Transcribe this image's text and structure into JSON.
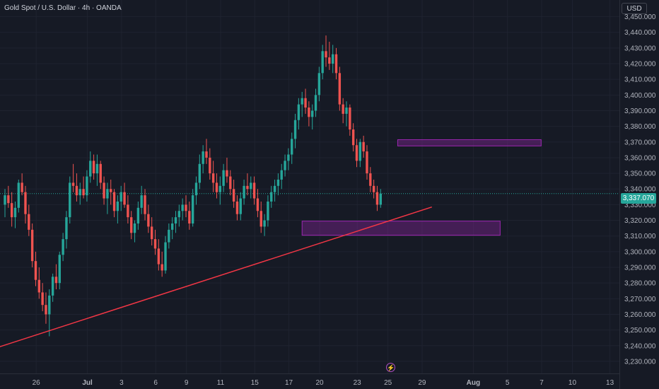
{
  "header": {
    "symbol_title": "Gold Spot / U.S. Dollar · 4h · OANDA"
  },
  "price_axis": {
    "currency": "USD",
    "current_price_label": "3,337.070"
  },
  "bottom_bar": {
    "bolt_icon": "lightning-icon"
  },
  "colors": {
    "background": "#161a25",
    "bull": "#26a69a",
    "bear": "#ef5350",
    "trendline": "#f23645",
    "zone_fill": "#9c27b0",
    "zone_border": "#9c27b0",
    "grid": "#1f2330"
  },
  "chart_data": {
    "type": "candlestick",
    "title": "Gold Spot / U.S. Dollar · 4h · OANDA",
    "y_axis": {
      "ticks": [
        3230,
        3240,
        3250,
        3260,
        3270,
        3280,
        3290,
        3300,
        3310,
        3320,
        3330,
        3340,
        3350,
        3360,
        3370,
        3380,
        3390,
        3400,
        3410,
        3420,
        3430,
        3440,
        3450
      ],
      "tick_labels": [
        "3,230.000",
        "3,240.000",
        "3,250.000",
        "3,260.000",
        "3,270.000",
        "3,280.000",
        "3,290.000",
        "3,300.000",
        "3,310.000",
        "3,320.000",
        "3,330.000",
        "3,340.000",
        "3,350.000",
        "3,360.000",
        "3,370.000",
        "3,380.000",
        "3,390.000",
        "3,400.000",
        "3,410.000",
        "3,420.000",
        "3,430.000",
        "3,440.000",
        "3,450.000"
      ],
      "range": [
        3225,
        3458
      ]
    },
    "x_axis": {
      "tick_labels": [
        "26",
        "Jul",
        "3",
        "6",
        "9",
        "11",
        "15",
        "17",
        "20",
        "23",
        "25",
        "29",
        "Aug",
        "5",
        "7",
        "10",
        "13"
      ],
      "tick_bar_index": [
        5,
        20,
        30,
        40,
        49,
        59,
        69,
        79,
        88,
        99,
        108,
        118,
        133,
        143,
        153,
        162,
        173
      ]
    },
    "current_price": 3337.07,
    "candles": [
      [
        3330,
        3340,
        3322,
        3336
      ],
      [
        3336,
        3342,
        3328,
        3331
      ],
      [
        3331,
        3338,
        3316,
        3322
      ],
      [
        3322,
        3332,
        3315,
        3328
      ],
      [
        3328,
        3346,
        3325,
        3344
      ],
      [
        3344,
        3350,
        3336,
        3338
      ],
      [
        3338,
        3342,
        3318,
        3324
      ],
      [
        3324,
        3330,
        3310,
        3314
      ],
      [
        3314,
        3318,
        3290,
        3294
      ],
      [
        3294,
        3300,
        3278,
        3282
      ],
      [
        3282,
        3290,
        3270,
        3274
      ],
      [
        3274,
        3280,
        3262,
        3266
      ],
      [
        3266,
        3274,
        3254,
        3260
      ],
      [
        3260,
        3276,
        3246,
        3272
      ],
      [
        3272,
        3286,
        3268,
        3284
      ],
      [
        3284,
        3292,
        3276,
        3280
      ],
      [
        3280,
        3300,
        3276,
        3298
      ],
      [
        3298,
        3312,
        3294,
        3308
      ],
      [
        3308,
        3326,
        3302,
        3322
      ],
      [
        3322,
        3348,
        3318,
        3344
      ],
      [
        3344,
        3356,
        3338,
        3342
      ],
      [
        3342,
        3350,
        3332,
        3336
      ],
      [
        3336,
        3344,
        3330,
        3340
      ],
      [
        3340,
        3348,
        3334,
        3336
      ],
      [
        3336,
        3352,
        3332,
        3348
      ],
      [
        3348,
        3364,
        3344,
        3358
      ],
      [
        3358,
        3362,
        3346,
        3350
      ],
      [
        3350,
        3362,
        3342,
        3356
      ],
      [
        3356,
        3358,
        3340,
        3344
      ],
      [
        3344,
        3348,
        3330,
        3334
      ],
      [
        3334,
        3344,
        3324,
        3340
      ],
      [
        3340,
        3346,
        3330,
        3338
      ],
      [
        3338,
        3340,
        3322,
        3326
      ],
      [
        3326,
        3336,
        3318,
        3332
      ],
      [
        3332,
        3342,
        3326,
        3338
      ],
      [
        3338,
        3344,
        3328,
        3330
      ],
      [
        3330,
        3336,
        3318,
        3322
      ],
      [
        3322,
        3326,
        3308,
        3312
      ],
      [
        3312,
        3320,
        3306,
        3318
      ],
      [
        3318,
        3332,
        3314,
        3328
      ],
      [
        3328,
        3342,
        3324,
        3336
      ],
      [
        3336,
        3340,
        3320,
        3324
      ],
      [
        3324,
        3330,
        3312,
        3316
      ],
      [
        3316,
        3322,
        3304,
        3308
      ],
      [
        3308,
        3314,
        3298,
        3302
      ],
      [
        3302,
        3308,
        3288,
        3292
      ],
      [
        3292,
        3300,
        3284,
        3288
      ],
      [
        3288,
        3310,
        3286,
        3306
      ],
      [
        3306,
        3318,
        3302,
        3314
      ],
      [
        3314,
        3322,
        3308,
        3318
      ],
      [
        3318,
        3326,
        3312,
        3322
      ],
      [
        3322,
        3330,
        3316,
        3326
      ],
      [
        3326,
        3334,
        3320,
        3330
      ],
      [
        3330,
        3336,
        3322,
        3326
      ],
      [
        3326,
        3332,
        3314,
        3318
      ],
      [
        3318,
        3340,
        3316,
        3336
      ],
      [
        3336,
        3348,
        3330,
        3344
      ],
      [
        3344,
        3362,
        3340,
        3356
      ],
      [
        3356,
        3368,
        3350,
        3364
      ],
      [
        3364,
        3372,
        3356,
        3360
      ],
      [
        3360,
        3366,
        3346,
        3350
      ],
      [
        3350,
        3358,
        3338,
        3344
      ],
      [
        3344,
        3350,
        3334,
        3338
      ],
      [
        3338,
        3348,
        3330,
        3342
      ],
      [
        3342,
        3356,
        3338,
        3352
      ],
      [
        3352,
        3360,
        3344,
        3348
      ],
      [
        3348,
        3352,
        3336,
        3340
      ],
      [
        3340,
        3346,
        3328,
        3332
      ],
      [
        3332,
        3336,
        3320,
        3324
      ],
      [
        3324,
        3338,
        3320,
        3334
      ],
      [
        3334,
        3346,
        3330,
        3342
      ],
      [
        3342,
        3350,
        3336,
        3340
      ],
      [
        3340,
        3348,
        3334,
        3344
      ],
      [
        3344,
        3348,
        3330,
        3334
      ],
      [
        3334,
        3340,
        3322,
        3326
      ],
      [
        3326,
        3332,
        3312,
        3316
      ],
      [
        3316,
        3324,
        3310,
        3320
      ],
      [
        3320,
        3336,
        3316,
        3332
      ],
      [
        3332,
        3342,
        3328,
        3338
      ],
      [
        3338,
        3346,
        3332,
        3342
      ],
      [
        3342,
        3350,
        3336,
        3346
      ],
      [
        3346,
        3356,
        3340,
        3352
      ],
      [
        3352,
        3362,
        3348,
        3358
      ],
      [
        3358,
        3366,
        3352,
        3362
      ],
      [
        3362,
        3376,
        3356,
        3372
      ],
      [
        3372,
        3388,
        3366,
        3384
      ],
      [
        3384,
        3398,
        3378,
        3394
      ],
      [
        3394,
        3402,
        3386,
        3398
      ],
      [
        3398,
        3404,
        3388,
        3392
      ],
      [
        3392,
        3396,
        3380,
        3386
      ],
      [
        3386,
        3394,
        3378,
        3390
      ],
      [
        3390,
        3404,
        3386,
        3400
      ],
      [
        3400,
        3418,
        3396,
        3414
      ],
      [
        3414,
        3432,
        3410,
        3428
      ],
      [
        3428,
        3438,
        3418,
        3424
      ],
      [
        3424,
        3434,
        3416,
        3420
      ],
      [
        3420,
        3432,
        3414,
        3426
      ],
      [
        3426,
        3430,
        3410,
        3414
      ],
      [
        3414,
        3418,
        3390,
        3394
      ],
      [
        3394,
        3398,
        3382,
        3388
      ],
      [
        3388,
        3396,
        3380,
        3392
      ],
      [
        3392,
        3394,
        3374,
        3378
      ],
      [
        3378,
        3382,
        3364,
        3368
      ],
      [
        3368,
        3372,
        3354,
        3358
      ],
      [
        3358,
        3372,
        3354,
        3370
      ],
      [
        3370,
        3374,
        3360,
        3364
      ],
      [
        3364,
        3368,
        3346,
        3350
      ],
      [
        3350,
        3354,
        3338,
        3342
      ],
      [
        3342,
        3346,
        3334,
        3338
      ],
      [
        3338,
        3342,
        3326,
        3330
      ],
      [
        3330,
        3340,
        3328,
        3337
      ]
    ],
    "annotations": [
      {
        "type": "trendline",
        "from": {
          "bar": -2,
          "price": 3239
        },
        "to": {
          "bar": 125,
          "price": 3328.5
        }
      },
      {
        "type": "zone",
        "from_bar": 87,
        "to_bar": 145,
        "price_low": 3310.5,
        "price_high": 3319.5
      },
      {
        "type": "zone",
        "from_bar": 115,
        "to_bar": 157,
        "price_low": 3367.5,
        "price_high": 3371.5
      }
    ]
  }
}
